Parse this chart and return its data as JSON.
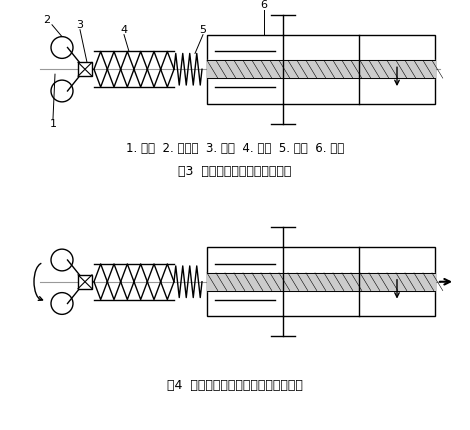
{
  "fig_width": 4.7,
  "fig_height": 4.3,
  "dpi": 100,
  "bg_color": "#ffffff",
  "line_color": "#000000",
  "title1": "图3  方向阀在卷筒零转速的示意",
  "title2": "图4  方向阀在卷筒正常工作转速的示意",
  "legend_text": "1. 转轴  2. 小钙球  3. 转臂  4. 阀芯  5. 弹簧  6. 阀体"
}
